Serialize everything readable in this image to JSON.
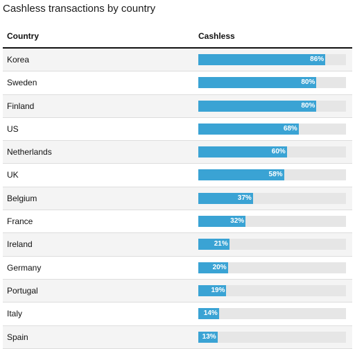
{
  "chart_data": {
    "type": "table",
    "title": "Cashless transactions by country",
    "columns": [
      "Country",
      "Cashless"
    ],
    "value_max": 100,
    "bar_color": "#3aa3d4",
    "track_color": "#e6e6e6",
    "rows": [
      {
        "country": "Korea",
        "value": 86,
        "label": "86%"
      },
      {
        "country": "Sweden",
        "value": 80,
        "label": "80%"
      },
      {
        "country": "Finland",
        "value": 80,
        "label": "80%"
      },
      {
        "country": "US",
        "value": 68,
        "label": "68%"
      },
      {
        "country": "Netherlands",
        "value": 60,
        "label": "60%"
      },
      {
        "country": "UK",
        "value": 58,
        "label": "58%"
      },
      {
        "country": "Belgium",
        "value": 37,
        "label": "37%"
      },
      {
        "country": "France",
        "value": 32,
        "label": "32%"
      },
      {
        "country": "Ireland",
        "value": 21,
        "label": "21%"
      },
      {
        "country": "Germany",
        "value": 20,
        "label": "20%"
      },
      {
        "country": "Portugal",
        "value": 19,
        "label": "19%"
      },
      {
        "country": "Italy",
        "value": 14,
        "label": "14%"
      },
      {
        "country": "Spain",
        "value": 13,
        "label": "13%"
      }
    ]
  }
}
